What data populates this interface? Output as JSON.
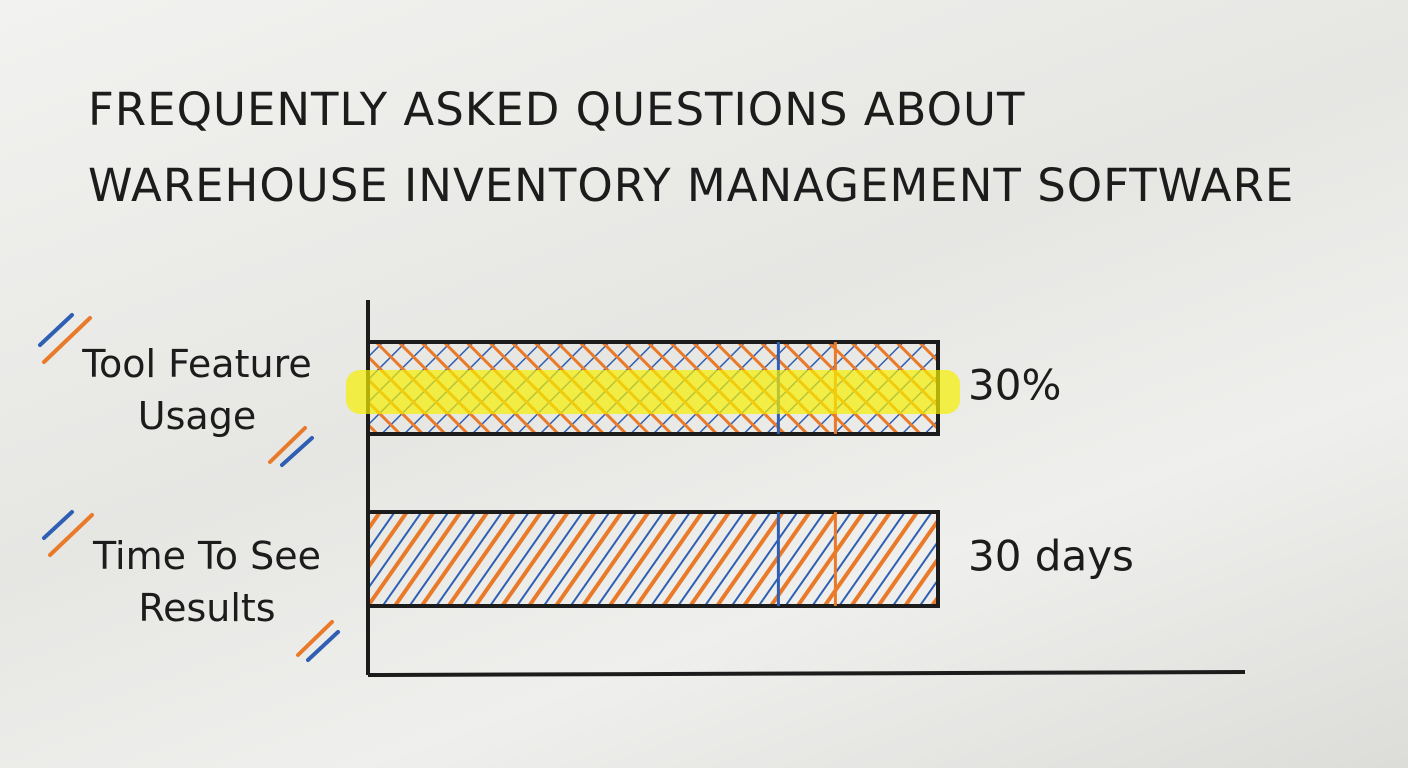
{
  "chart_data": {
    "type": "bar",
    "title": "FREQUENTLY ASKED QUESTIONS ABOUT WAREHOUSE INVENTORY MANAGEMENT SOFTWARE",
    "categories": [
      "Tool Feature Usage",
      "Time To See Results"
    ],
    "values": [
      30,
      30
    ],
    "value_labels": [
      "30%",
      "30 days"
    ],
    "colors": [
      "#2f5fb3",
      "#e87a2a"
    ]
  }
}
